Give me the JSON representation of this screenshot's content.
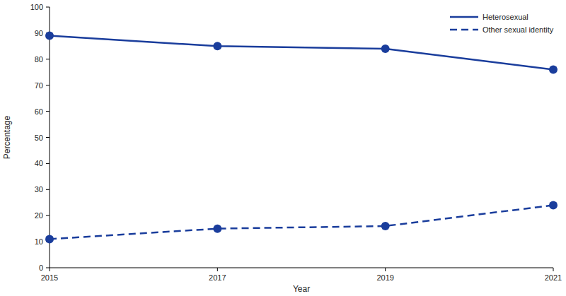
{
  "chart_data": {
    "type": "line",
    "x_label": "Year",
    "y_label": "Percentage",
    "x": [
      2015,
      2017,
      2019,
      2021
    ],
    "series": [
      {
        "name": "Heterosexual",
        "color": "#1a3d9c",
        "values": [
          89,
          85,
          84,
          76
        ],
        "line_style": "solid",
        "marker": "circle"
      },
      {
        "name": "Other sexual identity",
        "color": "#1a3d9c",
        "values": [
          11,
          15,
          16,
          24
        ],
        "line_style": "dashed",
        "marker": "circle"
      }
    ],
    "xlim": [
      2015,
      2021
    ],
    "xticks": [
      2015,
      2017,
      2019,
      2021
    ],
    "ylim": [
      0,
      100
    ],
    "yticks": [
      0,
      10,
      20,
      30,
      40,
      50,
      60,
      70,
      80,
      90,
      100
    ],
    "grid": false,
    "legend": "upper right"
  }
}
